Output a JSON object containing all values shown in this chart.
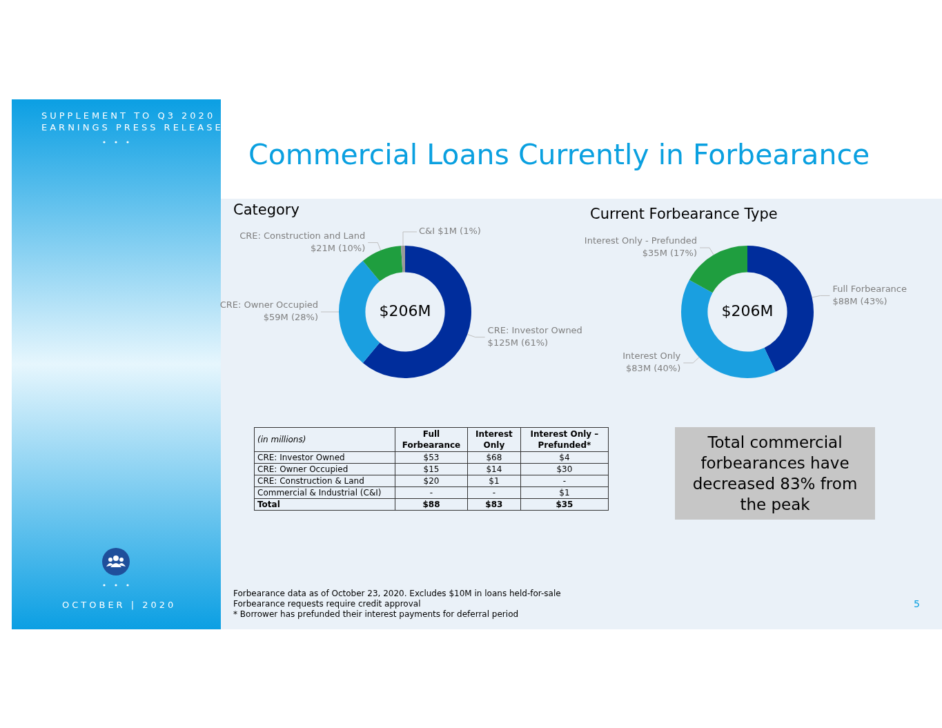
{
  "chart_data": [
    {
      "type": "other",
      "title": "Commercial Loans Currently in Forbearance",
      "annotations": [
        "SUPPLEMENT TO Q3 2020",
        "EARNINGS PRESS RELEASE",
        "OCTOBER | 2020",
        "Forbearance data as of October 23, 2020. Excludes $10M in loans held-for-sale",
        "Forbearance requests require credit approval",
        "* Borrower has prefunded their interest payments for deferral period",
        "5"
      ]
    },
    {
      "type": "donut",
      "title": "Category",
      "categories": [
        "CRE: Investor Owned",
        "CRE: Owner Occupied",
        "CRE: Construction and Land",
        "C&I"
      ],
      "values": [
        61,
        28,
        10,
        1
      ],
      "value_labels": [
        "$125M (61%)",
        "$59M (28%)",
        "$21M (10%)",
        "$1M (1%)"
      ],
      "colors": [
        "#002d9c",
        "#1a9fe0",
        "#1f9e3f",
        "#9a9a9a"
      ],
      "annotations": [
        "$206M"
      ],
      "legend": false
    },
    {
      "type": "donut",
      "title": "Current Forbearance Type",
      "categories": [
        "Full Forbearance",
        "Interest Only",
        "Interest Only - Prefunded"
      ],
      "values": [
        43,
        40,
        17
      ],
      "value_labels": [
        "$88M (43%)",
        "$83M (40%)",
        "$35M (17%)"
      ],
      "colors": [
        "#002d9c",
        "#1a9fe0",
        "#1f9e3f"
      ],
      "annotations": [
        "$206M"
      ],
      "legend": false
    },
    {
      "type": "other",
      "annotations": [
        "(in millions)"
      ],
      "categories": [
        "Full Forbearance",
        "Interest Only",
        "Interest Only – Prefunded*"
      ],
      "y_categories": [
        "CRE: Investor Owned",
        "CRE: Owner Occupied",
        "CRE: Construction & Land",
        "Commercial & Industrial (C&I)",
        "Total"
      ],
      "cell_labels": [
        [
          "$53",
          "$68",
          "$4"
        ],
        [
          "$15",
          "$14",
          "$30"
        ],
        [
          "$20",
          "$1",
          "-"
        ],
        [
          "-",
          "-",
          "$1"
        ],
        [
          "$88",
          "$83",
          "$35"
        ]
      ]
    },
    {
      "type": "other",
      "title": "Total commercial forbearances have decreased 83% from the peak"
    }
  ]
}
